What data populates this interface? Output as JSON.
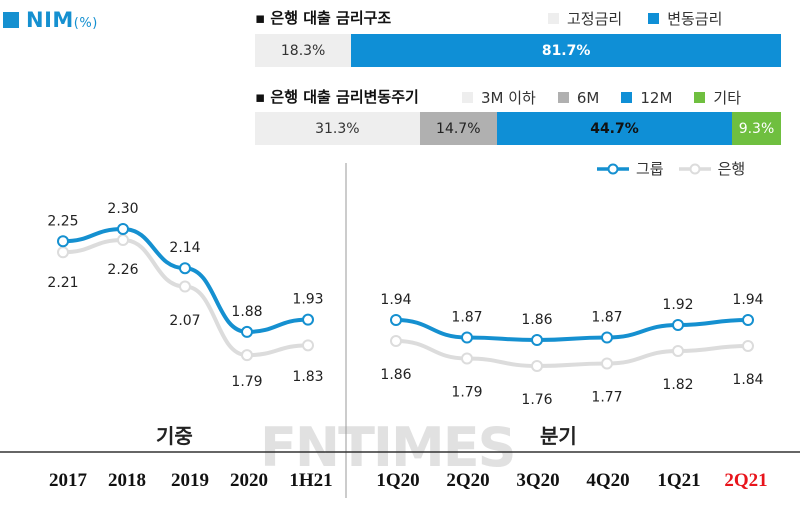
{
  "nim_title": {
    "label": "NIM",
    "unit": "(%)"
  },
  "rate_structure": {
    "title": "▪ 은행 대출 금리구조",
    "legend": [
      {
        "label": "고정금리",
        "color": "#eeeeee"
      },
      {
        "label": "변동금리",
        "color": "#0f8fd6"
      }
    ],
    "segments": [
      {
        "label": "18.3%",
        "value": 18.3,
        "color": "#eeeeee",
        "bold": false,
        "text_color": "#333333"
      },
      {
        "label": "81.7%",
        "value": 81.7,
        "color": "#0f8fd6",
        "bold": true,
        "text_color": "#ffffff"
      }
    ]
  },
  "reset_period": {
    "title": "▪ 은행 대출 금리변동주기",
    "legend": [
      {
        "label": "3M 이하",
        "color": "#eeeeee"
      },
      {
        "label": "6M",
        "color": "#b0b0b0"
      },
      {
        "label": "12M",
        "color": "#0f8fd6"
      },
      {
        "label": "기타",
        "color": "#6fbf3f"
      }
    ],
    "segments": [
      {
        "label": "31.3%",
        "value": 31.3,
        "color": "#eeeeee",
        "bold": false,
        "text_color": "#333333"
      },
      {
        "label": "14.7%",
        "value": 14.7,
        "color": "#b0b0b0",
        "bold": false,
        "text_color": "#222222"
      },
      {
        "label": "44.7%",
        "value": 44.7,
        "color": "#0f8fd6",
        "bold": true,
        "text_color": "#111111"
      },
      {
        "label": "9.3%",
        "value": 9.3,
        "color": "#6fbf3f",
        "bold": false,
        "text_color": "#ffffff"
      }
    ]
  },
  "line_legend": [
    {
      "label": "그룹",
      "color": "#1590d0"
    },
    {
      "label": "은행",
      "color": "#dcdcdc"
    }
  ],
  "group_labels": {
    "annual": "기중",
    "quarterly": "분기"
  },
  "watermark": "FNTIMES",
  "colors": {
    "group_line": "#1590d0",
    "bank_line": "#dcdcdc",
    "highlight": "#e8141b"
  },
  "chart_data": [
    {
      "type": "line",
      "categories": [
        "2017",
        "2018",
        "2019",
        "2020",
        "1H21"
      ],
      "series": [
        {
          "name": "그룹",
          "values": [
            2.25,
            2.3,
            2.14,
            1.88,
            1.93
          ]
        },
        {
          "name": "은행",
          "values": [
            2.21,
            2.26,
            2.07,
            1.79,
            1.83
          ]
        }
      ]
    },
    {
      "type": "line",
      "categories": [
        "1Q20",
        "2Q20",
        "3Q20",
        "4Q20",
        "1Q21",
        "2Q21"
      ],
      "highlight_category": "2Q21",
      "series": [
        {
          "name": "그룹",
          "values": [
            1.94,
            1.87,
            1.86,
            1.87,
            1.92,
            1.94
          ]
        },
        {
          "name": "은행",
          "values": [
            1.86,
            1.79,
            1.76,
            1.77,
            1.82,
            1.84
          ]
        }
      ]
    }
  ]
}
